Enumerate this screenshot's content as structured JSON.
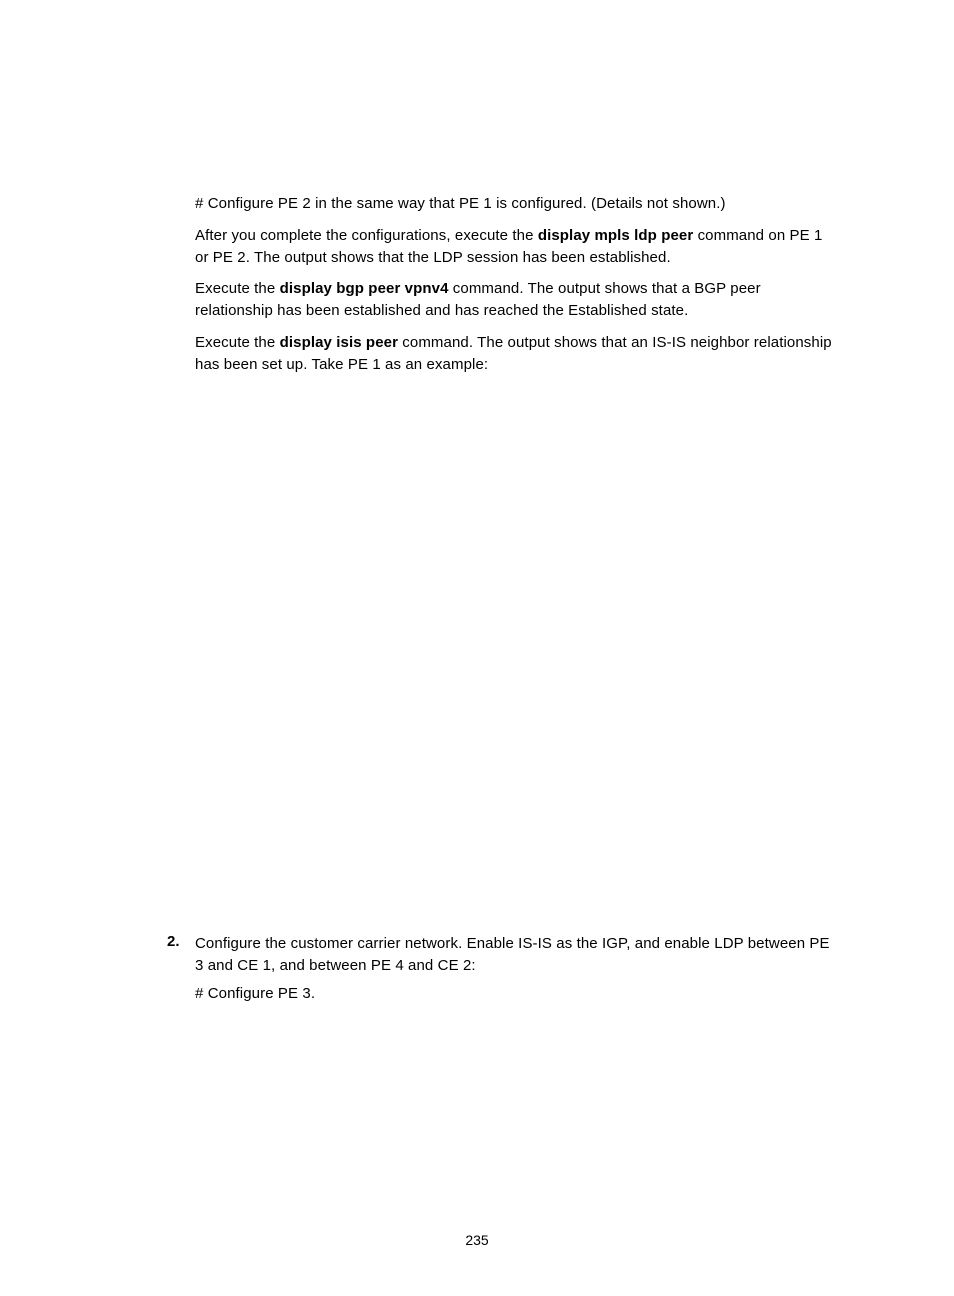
{
  "paragraphs": {
    "p1": "# Configure PE 2 in the same way that PE 1 is configured. (Details not shown.)",
    "p2a": "After you complete the configurations, execute the ",
    "p2b": "display mpls ldp peer",
    "p2c": " command on PE 1 or PE 2. The output shows that the LDP session has been established.",
    "p3a": "Execute the ",
    "p3b": "display bgp peer vpnv4",
    "p3c": " command. The output shows that a BGP peer relationship has been established and has reached the Established state.",
    "p4a": "Execute the ",
    "p4b": "display isis peer",
    "p4c": " command. The output shows that an IS-IS neighbor relationship has been set up. Take PE 1 as an example:"
  },
  "step": {
    "number": "2.",
    "line1": "Configure the customer carrier network. Enable IS-IS as the IGP, and enable LDP between PE 3 and CE 1, and between PE 4 and CE 2:",
    "line2": "# Configure PE 3."
  },
  "pageNumber": "235"
}
